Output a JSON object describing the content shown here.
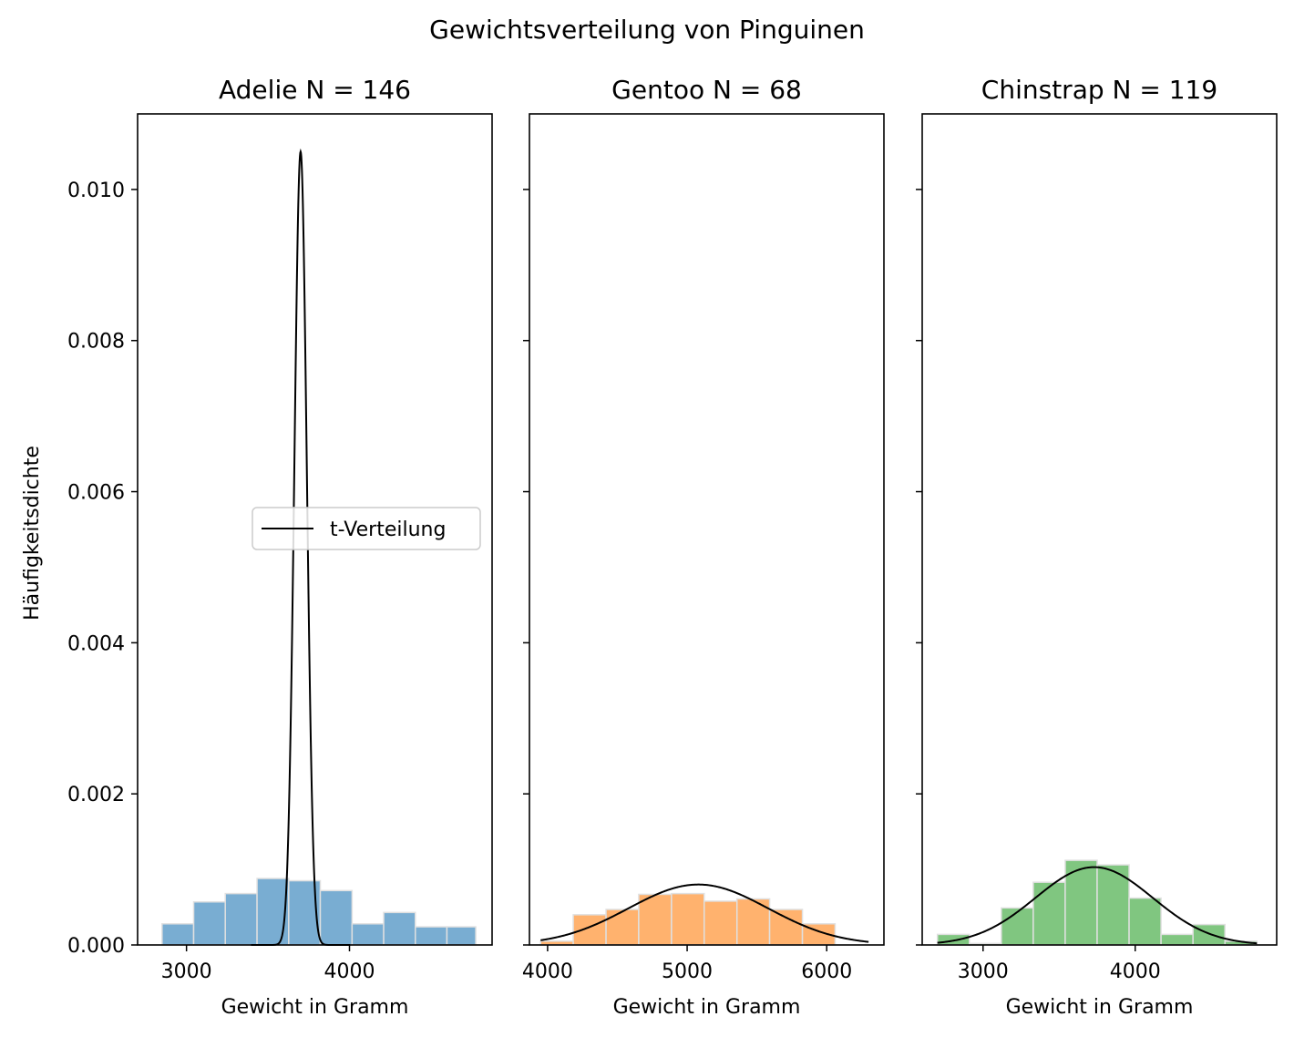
{
  "chart_data": {
    "type": "histogram-with-density",
    "title": "Gewichtsverteilung von Pinguinen",
    "ylabel": "Häufigkeitsdichte",
    "ylim": [
      0,
      0.011
    ],
    "yticks": [
      "0.000",
      "0.002",
      "0.004",
      "0.006",
      "0.008",
      "0.010"
    ],
    "legend": {
      "label": "t-Verteilung",
      "placement": "center-right of first panel"
    },
    "panels": [
      {
        "title": "Adelie N = 146",
        "xlabel": "Gewicht in Gramm",
        "color": "#1f77b4",
        "xlim": [
          2700,
          4875
        ],
        "xticks": [
          3000,
          4000
        ],
        "hist_edges": [
          2850,
          3044,
          3238,
          3433,
          3627,
          3821,
          4016,
          4210,
          4404,
          4598,
          4775
        ],
        "hist_values": [
          0.00028,
          0.00057,
          0.00068,
          0.00088,
          0.00085,
          0.00072,
          0.00028,
          0.00043,
          0.00024,
          0.00024
        ],
        "curve": {
          "center": 3700,
          "scale": 38,
          "peak": 0.0105
        }
      },
      {
        "title": "Gentoo N = 68",
        "xlabel": "Gewicht in Gramm",
        "color": "#ff7f0e",
        "xlim": [
          3870,
          6410
        ],
        "xticks": [
          4000,
          5000,
          6000
        ],
        "hist_edges": [
          3950,
          4184,
          4419,
          4653,
          4888,
          5122,
          5357,
          5591,
          5826,
          6060
        ],
        "hist_values": [
          5e-05,
          0.0004,
          0.00047,
          0.00067,
          0.00068,
          0.00058,
          0.00061,
          0.00047,
          0.00028
        ],
        "curve": {
          "center": 5080,
          "scale": 500,
          "peak": 0.0008,
          "range": [
            3950,
            6300
          ]
        }
      },
      {
        "title": "Chinstrap N = 119",
        "xlabel": "Gewicht in Gramm",
        "color": "#2ca02c",
        "xlim": [
          2600,
          4930
        ],
        "xticks": [
          3000,
          4000
        ],
        "hist_edges": [
          2700,
          2910,
          3120,
          3330,
          3540,
          3750,
          3960,
          4170,
          4380,
          4590,
          4800
        ],
        "hist_values": [
          0.00014,
          2e-05,
          0.00049,
          0.00083,
          0.00112,
          0.00106,
          0.00062,
          0.00014,
          0.00027,
          5e-05
        ],
        "curve": {
          "center": 3730,
          "scale": 385,
          "peak": 0.00103,
          "range": [
            2700,
            4800
          ]
        }
      }
    ]
  }
}
